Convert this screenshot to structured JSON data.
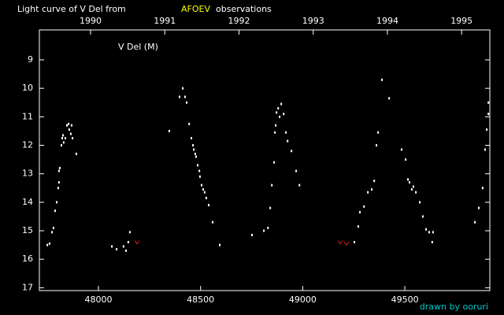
{
  "chart_data": {
    "type": "scatter",
    "title_parts": [
      "Light curve of V Del from",
      "AFOEV",
      "observations"
    ],
    "title_colors": [
      "#ffffff",
      "#ffff00",
      "#ffffff"
    ],
    "annotation": "V Del (M)",
    "credit": "drawn by ooruri",
    "credit_color": "#00c8c8",
    "xlim": [
      47711,
      49916
    ],
    "xticks": [
      48000,
      48500,
      49000,
      49500
    ],
    "x2lim": [
      1989.31,
      1995.38
    ],
    "x2ticks": [
      1990,
      1991,
      1992,
      1993,
      1994,
      1995
    ],
    "ylim": [
      17.1,
      7.95
    ],
    "yticks": [
      9,
      10,
      11,
      12,
      13,
      14,
      15,
      16,
      17
    ],
    "series": [
      {
        "color": "#ffffff",
        "marker": "dot",
        "x": [
          47750,
          47761,
          47773,
          47780,
          47788,
          47796,
          47803,
          47807,
          47807,
          47811,
          47819,
          47823,
          47827,
          47830,
          47838,
          47846,
          47854,
          47857,
          47865,
          47869,
          47873,
          47892,
          48066,
          48089,
          48123,
          48135,
          48146,
          48154,
          48347,
          48397,
          48413,
          48424,
          48432,
          48444,
          48455,
          48463,
          48467,
          48474,
          48478,
          48486,
          48494,
          48497,
          48505,
          48513,
          48520,
          48528,
          48540,
          48559,
          48594,
          48752,
          48810,
          48830,
          48841,
          48849,
          48860,
          48864,
          48868,
          48872,
          48880,
          48887,
          48895,
          48907,
          48918,
          48926,
          48945,
          48968,
          48984,
          49253,
          49272,
          49280,
          49300,
          49319,
          49338,
          49350,
          49361,
          49369,
          49388,
          49423,
          49484,
          49504,
          49515,
          49523,
          49534,
          49542,
          49554,
          49573,
          49588,
          49604,
          49619,
          49634,
          49638,
          49843,
          49862,
          49881,
          49893,
          49901,
          49909,
          49909
        ],
        "values": [
          15.5,
          15.45,
          15.05,
          14.9,
          14.3,
          14.0,
          13.5,
          13.3,
          12.9,
          12.8,
          12.0,
          11.75,
          11.65,
          11.9,
          11.75,
          11.3,
          11.25,
          11.45,
          11.6,
          11.3,
          11.75,
          12.3,
          15.55,
          15.65,
          15.55,
          15.7,
          15.4,
          15.05,
          11.5,
          10.3,
          10.0,
          10.3,
          10.5,
          11.25,
          11.75,
          12.0,
          12.15,
          12.3,
          12.4,
          12.7,
          12.9,
          13.1,
          13.4,
          13.55,
          13.65,
          13.85,
          14.1,
          14.7,
          15.5,
          15.15,
          15.0,
          14.9,
          14.2,
          13.4,
          12.6,
          11.55,
          11.3,
          10.85,
          10.7,
          11.0,
          10.55,
          10.9,
          11.55,
          11.85,
          12.2,
          12.9,
          13.4,
          15.4,
          14.85,
          14.35,
          14.15,
          13.65,
          13.55,
          13.25,
          12.0,
          11.55,
          9.7,
          10.35,
          12.15,
          12.5,
          13.2,
          13.3,
          13.55,
          13.45,
          13.65,
          14.0,
          14.5,
          14.95,
          15.05,
          15.4,
          15.05,
          14.7,
          14.2,
          13.5,
          12.15,
          11.45,
          10.5,
          10.9
        ]
      },
      {
        "color": "#e02020",
        "marker": "caret",
        "x": [
          48189,
          49184,
          49215
        ],
        "values": [
          15.4,
          15.4,
          15.45
        ]
      }
    ]
  }
}
